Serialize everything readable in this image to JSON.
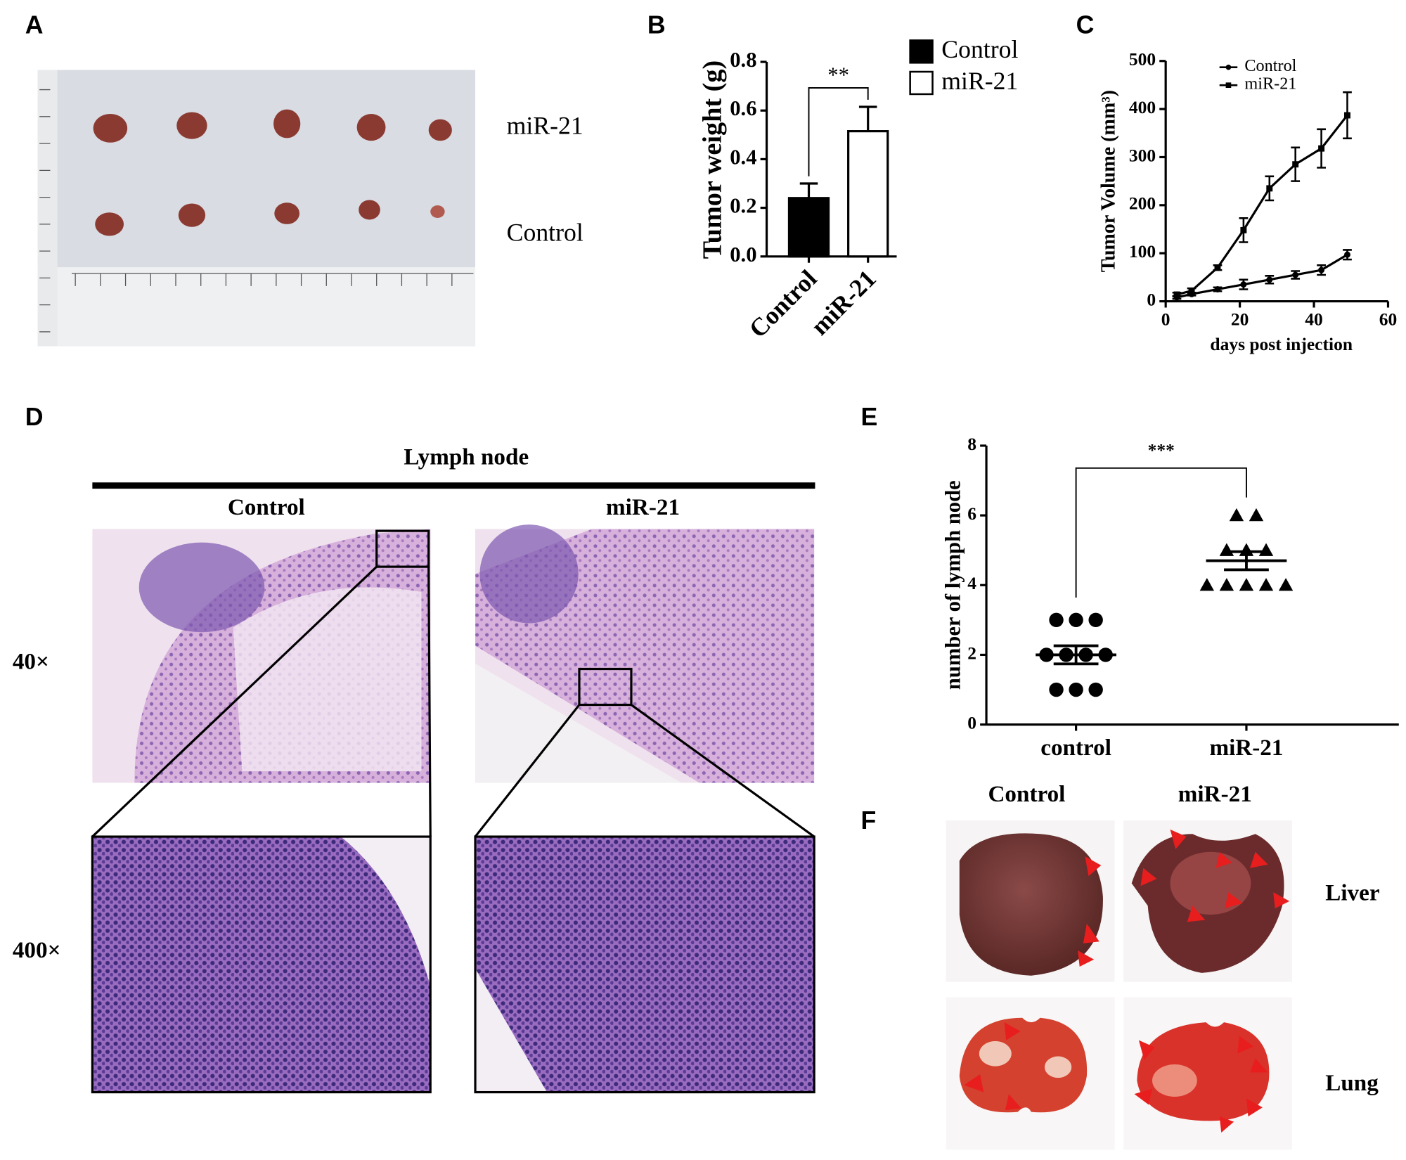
{
  "panels": {
    "a": "A",
    "b": "B",
    "c": "C",
    "d": "D",
    "e": "E",
    "f": "F"
  },
  "panel_a": {
    "top_row": "miR-21",
    "bottom_row": "Control"
  },
  "panel_d": {
    "title": "Lymph node",
    "left": "Control",
    "right": "miR-21",
    "row1": "40×",
    "row2": "400×"
  },
  "panel_f": {
    "left": "Control",
    "right": "miR-21",
    "row1": "Liver",
    "row2": "Lung"
  },
  "chart_data": [
    {
      "type": "bar",
      "ylabel": "Tumor weight (g)",
      "categories": [
        "Control",
        "miR-21"
      ],
      "values": [
        0.24,
        0.515
      ],
      "errors": [
        0.06,
        0.1
      ],
      "colors": [
        "#000000",
        "#ffffff"
      ],
      "ylim": [
        0,
        0.8
      ],
      "yticks": [
        {
          "value": 0,
          "label": "0.0"
        },
        0.2,
        0.4,
        0.6,
        0.8
      ],
      "significance": "**",
      "legend": "top-right"
    },
    {
      "type": "line",
      "ylabel": "Tumor Volume (mm³)",
      "xlabel": "days post injection",
      "x": [
        3,
        7,
        14,
        21,
        28,
        35,
        42,
        49
      ],
      "series": [
        {
          "name": "Control",
          "color": "#000000",
          "marker": "circle",
          "values": [
            8,
            15,
            25,
            35,
            45,
            55,
            65,
            97
          ],
          "errors": [
            3,
            3,
            4,
            10,
            8,
            8,
            10,
            10
          ]
        },
        {
          "name": "miR-21",
          "color": "#000000",
          "marker": "square",
          "values": [
            14,
            22,
            70,
            148,
            235,
            285,
            318,
            387
          ],
          "errors": [
            4,
            5,
            5,
            25,
            25,
            35,
            40,
            48
          ]
        }
      ],
      "xlim": [
        0,
        60
      ],
      "xticks": [
        0,
        20,
        40,
        60
      ],
      "ylim": [
        0,
        500
      ],
      "yticks": [
        0,
        100,
        200,
        300,
        400,
        500
      ],
      "legend": "top-left"
    },
    {
      "type": "dot",
      "ylabel": "number of lymph node",
      "categories": [
        "control",
        "miR-21"
      ],
      "groups": [
        {
          "marker": "circle",
          "values": [
            3,
            3,
            3,
            2,
            2,
            2,
            2,
            1,
            1,
            1
          ],
          "mean": 2.0,
          "sem": 0.26
        },
        {
          "marker": "triangle",
          "values": [
            6,
            6,
            5,
            5,
            5,
            4,
            4,
            4,
            4,
            4
          ],
          "mean": 4.7,
          "sem": 0.26
        }
      ],
      "ylim": [
        0,
        8
      ],
      "yticks": [
        0,
        2,
        4,
        6,
        8
      ],
      "significance": "***"
    }
  ]
}
